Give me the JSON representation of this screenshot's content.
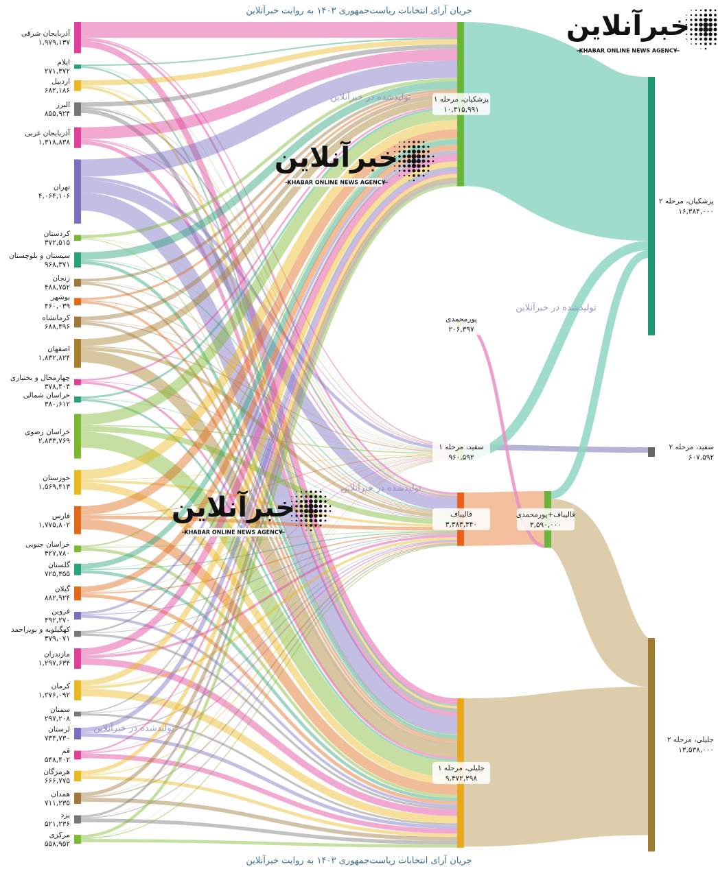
{
  "chart_data": {
    "type": "sankey",
    "title": "جریان آرای انتخابات ریاست‌جمهوری ۱۴۰۳ به روایت خبرآنلاین",
    "watermark": "تولیدشده در خبرآنلاین",
    "logo_name": "خبرآنلاین",
    "logo_tagline": "KHABAR ONLINE NEWS AGENCY",
    "nodes": [
      {
        "label": "آذربایجان شرقی",
        "value": 1979137,
        "value_label": "۱,۹۷۹,۱۳۷",
        "color": "#e0409a"
      },
      {
        "label": "ایلام",
        "value": 271372,
        "value_label": "۲۷۱,۳۷۲",
        "color": "#2aa37a"
      },
      {
        "label": "اردبیل",
        "value": 682186,
        "value_label": "۶۸۲,۱۸۶",
        "color": "#e8b820"
      },
      {
        "label": "البرز",
        "value": 855924,
        "value_label": "۸۵۵,۹۲۴",
        "color": "#777777"
      },
      {
        "label": "آذربایجان غربی",
        "value": 1318838,
        "value_label": "۱,۳۱۸,۸۳۸",
        "color": "#e0409a"
      },
      {
        "label": "تهران",
        "value": 4064106,
        "value_label": "۴,۰۶۴,۱۰۶",
        "color": "#7b6fc0"
      },
      {
        "label": "کردستان",
        "value": 372515,
        "value_label": "۳۷۲,۵۱۵",
        "color": "#7cb82f"
      },
      {
        "label": "سیستان و بلوچستان",
        "value": 968371,
        "value_label": "۹۶۸,۳۷۱",
        "color": "#2aa37a"
      },
      {
        "label": "زنجان",
        "value": 488752,
        "value_label": "۴۸۸,۷۵۲",
        "color": "#a0783c"
      },
      {
        "label": "بوشهر",
        "value": 460039,
        "value_label": "۴۶۰,۰۳۹",
        "color": "#e06a1a"
      },
      {
        "label": "کرمانشاه",
        "value": 688496,
        "value_label": "۶۸۸,۴۹۶",
        "color": "#a0783c"
      },
      {
        "label": "اصفهان",
        "value": 1832824,
        "value_label": "۱,۸۳۲,۸۲۴",
        "color": "#a8802c"
      },
      {
        "label": "چهارمحال و بختیاری",
        "value": 378404,
        "value_label": "۳۷۸,۴۰۴",
        "color": "#e0409a"
      },
      {
        "label": "خراسان شمالی",
        "value": 380612,
        "value_label": "۳۸۰,۶۱۲",
        "color": "#2aa37a"
      },
      {
        "label": "خراسان رضوی",
        "value": 2833769,
        "value_label": "۲,۸۳۳,۷۶۹",
        "color": "#7cb82f"
      },
      {
        "label": "خوزستان",
        "value": 1569413,
        "value_label": "۱,۵۶۹,۴۱۳",
        "color": "#e8b820"
      },
      {
        "label": "فارس",
        "value": 1775802,
        "value_label": "۱,۷۷۵,۸۰۲",
        "color": "#e06a1a"
      },
      {
        "label": "خراسان جنوبی",
        "value": 427780,
        "value_label": "۴۲۷,۷۸۰",
        "color": "#7cb82f"
      },
      {
        "label": "گلستان",
        "value": 725355,
        "value_label": "۷۲۵,۳۵۵",
        "color": "#2aa37a"
      },
      {
        "label": "گیلان",
        "value": 882924,
        "value_label": "۸۸۲,۹۲۴",
        "color": "#e06a1a"
      },
      {
        "label": "قزوین",
        "value": 492270,
        "value_label": "۴۹۲,۲۷۰",
        "color": "#7b6fc0"
      },
      {
        "label": "کهگیلویه و بویراحمد",
        "value": 379071,
        "value_label": "۳۷۹,۰۷۱",
        "color": "#777777"
      },
      {
        "label": "مازندران",
        "value": 1297634,
        "value_label": "۱,۲۹۷,۶۳۴",
        "color": "#e0409a"
      },
      {
        "label": "کرمان",
        "value": 1276092,
        "value_label": "۱,۲۷۶,۰۹۲",
        "color": "#e8b820"
      },
      {
        "label": "سمنان",
        "value": 297208,
        "value_label": "۲۹۷,۲۰۸",
        "color": "#777777"
      },
      {
        "label": "لرستان",
        "value": 734730,
        "value_label": "۷۳۴,۷۳۰",
        "color": "#7b6fc0"
      },
      {
        "label": "قم",
        "value": 548402,
        "value_label": "۵۴۸,۴۰۲",
        "color": "#e0409a"
      },
      {
        "label": "هرمزگان",
        "value": 666775,
        "value_label": "۶۶۶,۷۷۵",
        "color": "#e8b820"
      },
      {
        "label": "همدان",
        "value": 711235,
        "value_label": "۷۱۱,۲۳۵",
        "color": "#a0783c"
      },
      {
        "label": "یزد",
        "value": 521236,
        "value_label": "۵۲۱,۲۳۶",
        "color": "#777777"
      },
      {
        "label": "مرکزی",
        "value": 558952,
        "value_label": "۵۵۸,۹۵۲",
        "color": "#7cb82f"
      },
      {
        "label": "پزشکیان، مرحله ۱",
        "value": 10415991,
        "value_label": "۱۰,۴۱۵,۹۹۱",
        "color": "#6bb53a"
      },
      {
        "label": "پورمحمدی",
        "value": 206397,
        "value_label": "۲۰۶,۳۹۷",
        "color": "#6bb53a"
      },
      {
        "label": "سفید، مرحله ۱",
        "value": 960592,
        "value_label": "۹۶۰,۵۹۲",
        "color": "#6bb53a"
      },
      {
        "label": "قالیباف",
        "value": 3383340,
        "value_label": "۳,۳۸۳,۳۴۰",
        "color": "#e8601c"
      },
      {
        "label": "جلیلی، مرحله ۱",
        "value": 9472298,
        "value_label": "۹,۴۷۲,۲۹۸",
        "color": "#e8a81c"
      },
      {
        "label": "قالیباف+پورمحمدی",
        "value": 3590000,
        "value_label": "۳,۵۹۰,۰۰۰",
        "color": "#6bb53a"
      },
      {
        "label": "پزشکیان، مرحله ۲",
        "value": 16384000,
        "value_label": "۱۶,۳۸۴,۰۰۰",
        "color": "#1f9a6e"
      },
      {
        "label": "سفید، مرحله ۲",
        "value": 607592,
        "value_label": "۶۰۷,۵۹۲",
        "color": "#666666"
      },
      {
        "label": "جلیلی، مرحله ۲",
        "value": 13538000,
        "value_label": "۱۳,۵۳۸,۰۰۰",
        "color": "#a07a30"
      }
    ],
    "links": [
      {
        "source": 0,
        "target": 31,
        "value": 1000000
      },
      {
        "source": 0,
        "target": 33,
        "value": 60000
      },
      {
        "source": 0,
        "target": 34,
        "value": 130000
      },
      {
        "source": 0,
        "target": 35,
        "value": 400000
      },
      {
        "source": 1,
        "target": 31,
        "value": 90000
      },
      {
        "source": 1,
        "target": 33,
        "value": 8000
      },
      {
        "source": 1,
        "target": 34,
        "value": 25000
      },
      {
        "source": 1,
        "target": 35,
        "value": 90000
      },
      {
        "source": 2,
        "target": 31,
        "value": 330000
      },
      {
        "source": 2,
        "target": 33,
        "value": 20000
      },
      {
        "source": 2,
        "target": 34,
        "value": 40000
      },
      {
        "source": 2,
        "target": 35,
        "value": 150000
      },
      {
        "source": 3,
        "target": 31,
        "value": 280000
      },
      {
        "source": 3,
        "target": 33,
        "value": 30000
      },
      {
        "source": 3,
        "target": 34,
        "value": 110000
      },
      {
        "source": 3,
        "target": 35,
        "value": 260000
      },
      {
        "source": 4,
        "target": 31,
        "value": 750000
      },
      {
        "source": 4,
        "target": 33,
        "value": 40000
      },
      {
        "source": 4,
        "target": 34,
        "value": 70000
      },
      {
        "source": 4,
        "target": 35,
        "value": 230000
      },
      {
        "source": 5,
        "target": 31,
        "value": 1100000
      },
      {
        "source": 5,
        "target": 33,
        "value": 200000
      },
      {
        "source": 5,
        "target": 34,
        "value": 790000
      },
      {
        "source": 5,
        "target": 35,
        "value": 1150000
      },
      {
        "source": 6,
        "target": 31,
        "value": 200000
      },
      {
        "source": 6,
        "target": 33,
        "value": 15000
      },
      {
        "source": 6,
        "target": 34,
        "value": 15000
      },
      {
        "source": 6,
        "target": 35,
        "value": 50000
      },
      {
        "source": 7,
        "target": 31,
        "value": 480000
      },
      {
        "source": 7,
        "target": 33,
        "value": 20000
      },
      {
        "source": 7,
        "target": 34,
        "value": 60000
      },
      {
        "source": 7,
        "target": 35,
        "value": 200000
      },
      {
        "source": 8,
        "target": 31,
        "value": 180000
      },
      {
        "source": 8,
        "target": 33,
        "value": 15000
      },
      {
        "source": 8,
        "target": 34,
        "value": 40000
      },
      {
        "source": 8,
        "target": 35,
        "value": 130000
      },
      {
        "source": 9,
        "target": 31,
        "value": 140000
      },
      {
        "source": 9,
        "target": 33,
        "value": 10000
      },
      {
        "source": 9,
        "target": 34,
        "value": 50000
      },
      {
        "source": 9,
        "target": 35,
        "value": 150000
      },
      {
        "source": 10,
        "target": 31,
        "value": 270000
      },
      {
        "source": 10,
        "target": 33,
        "value": 25000
      },
      {
        "source": 10,
        "target": 34,
        "value": 60000
      },
      {
        "source": 10,
        "target": 35,
        "value": 170000
      },
      {
        "source": 11,
        "target": 31,
        "value": 450000
      },
      {
        "source": 11,
        "target": 33,
        "value": 60000
      },
      {
        "source": 11,
        "target": 34,
        "value": 230000
      },
      {
        "source": 11,
        "target": 35,
        "value": 750000
      },
      {
        "source": 12,
        "target": 31,
        "value": 110000
      },
      {
        "source": 12,
        "target": 33,
        "value": 10000
      },
      {
        "source": 12,
        "target": 34,
        "value": 40000
      },
      {
        "source": 12,
        "target": 35,
        "value": 140000
      },
      {
        "source": 13,
        "target": 31,
        "value": 130000
      },
      {
        "source": 13,
        "target": 33,
        "value": 10000
      },
      {
        "source": 13,
        "target": 34,
        "value": 30000
      },
      {
        "source": 13,
        "target": 35,
        "value": 130000
      },
      {
        "source": 14,
        "target": 31,
        "value": 700000
      },
      {
        "source": 14,
        "target": 33,
        "value": 70000
      },
      {
        "source": 14,
        "target": 34,
        "value": 350000
      },
      {
        "source": 14,
        "target": 35,
        "value": 1020000
      },
      {
        "source": 15,
        "target": 31,
        "value": 600000
      },
      {
        "source": 15,
        "target": 33,
        "value": 40000
      },
      {
        "source": 15,
        "target": 34,
        "value": 150000
      },
      {
        "source": 15,
        "target": 35,
        "value": 450000
      },
      {
        "source": 16,
        "target": 31,
        "value": 550000
      },
      {
        "source": 16,
        "target": 33,
        "value": 50000
      },
      {
        "source": 16,
        "target": 34,
        "value": 220000
      },
      {
        "source": 16,
        "target": 35,
        "value": 650000
      },
      {
        "source": 17,
        "target": 31,
        "value": 90000
      },
      {
        "source": 17,
        "target": 33,
        "value": 10000
      },
      {
        "source": 17,
        "target": 34,
        "value": 40000
      },
      {
        "source": 17,
        "target": 35,
        "value": 190000
      },
      {
        "source": 18,
        "target": 31,
        "value": 330000
      },
      {
        "source": 18,
        "target": 33,
        "value": 20000
      },
      {
        "source": 18,
        "target": 34,
        "value": 60000
      },
      {
        "source": 18,
        "target": 35,
        "value": 200000
      },
      {
        "source": 19,
        "target": 31,
        "value": 360000
      },
      {
        "source": 19,
        "target": 33,
        "value": 30000
      },
      {
        "source": 19,
        "target": 34,
        "value": 80000
      },
      {
        "source": 19,
        "target": 35,
        "value": 220000
      },
      {
        "source": 20,
        "target": 31,
        "value": 150000
      },
      {
        "source": 20,
        "target": 33,
        "value": 15000
      },
      {
        "source": 20,
        "target": 34,
        "value": 50000
      },
      {
        "source": 20,
        "target": 35,
        "value": 170000
      },
      {
        "source": 21,
        "target": 31,
        "value": 110000
      },
      {
        "source": 21,
        "target": 33,
        "value": 10000
      },
      {
        "source": 21,
        "target": 34,
        "value": 40000
      },
      {
        "source": 21,
        "target": 35,
        "value": 140000
      },
      {
        "source": 22,
        "target": 31,
        "value": 430000
      },
      {
        "source": 22,
        "target": 33,
        "value": 40000
      },
      {
        "source": 22,
        "target": 34,
        "value": 150000
      },
      {
        "source": 22,
        "target": 35,
        "value": 420000
      },
      {
        "source": 23,
        "target": 31,
        "value": 360000
      },
      {
        "source": 23,
        "target": 33,
        "value": 30000
      },
      {
        "source": 23,
        "target": 34,
        "value": 160000
      },
      {
        "source": 23,
        "target": 35,
        "value": 470000
      },
      {
        "source": 24,
        "target": 31,
        "value": 70000
      },
      {
        "source": 24,
        "target": 33,
        "value": 8000
      },
      {
        "source": 24,
        "target": 34,
        "value": 30000
      },
      {
        "source": 24,
        "target": 35,
        "value": 130000
      },
      {
        "source": 25,
        "target": 31,
        "value": 270000
      },
      {
        "source": 25,
        "target": 33,
        "value": 20000
      },
      {
        "source": 25,
        "target": 34,
        "value": 60000
      },
      {
        "source": 25,
        "target": 35,
        "value": 220000
      },
      {
        "source": 26,
        "target": 31,
        "value": 100000
      },
      {
        "source": 26,
        "target": 33,
        "value": 15000
      },
      {
        "source": 26,
        "target": 34,
        "value": 60000
      },
      {
        "source": 26,
        "target": 35,
        "value": 300000
      },
      {
        "source": 27,
        "target": 31,
        "value": 240000
      },
      {
        "source": 27,
        "target": 33,
        "value": 20000
      },
      {
        "source": 27,
        "target": 34,
        "value": 60000
      },
      {
        "source": 27,
        "target": 35,
        "value": 210000
      },
      {
        "source": 28,
        "target": 31,
        "value": 230000
      },
      {
        "source": 28,
        "target": 33,
        "value": 25000
      },
      {
        "source": 28,
        "target": 34,
        "value": 70000
      },
      {
        "source": 28,
        "target": 35,
        "value": 250000
      },
      {
        "source": 29,
        "target": 31,
        "value": 140000
      },
      {
        "source": 29,
        "target": 33,
        "value": 15000
      },
      {
        "source": 29,
        "target": 34,
        "value": 50000
      },
      {
        "source": 29,
        "target": 35,
        "value": 230000
      },
      {
        "source": 30,
        "target": 31,
        "value": 180000
      },
      {
        "source": 30,
        "target": 33,
        "value": 20000
      },
      {
        "source": 30,
        "target": 34,
        "value": 60000
      },
      {
        "source": 30,
        "target": 35,
        "value": 200000
      },
      {
        "source": 31,
        "target": 37,
        "value": 10400000,
        "color": "#8fd6c2"
      },
      {
        "source": 33,
        "target": 38,
        "value": 350000,
        "color": "#a9a7cf"
      },
      {
        "source": 33,
        "target": 37,
        "value": 600000,
        "color": "#8fd6c2"
      },
      {
        "source": 34,
        "target": 36,
        "value": 3383340,
        "color": "#f2b48c"
      },
      {
        "source": 32,
        "target": 36,
        "value": 206397,
        "color": "#ea8fc4"
      },
      {
        "source": 36,
        "target": 37,
        "value": 490000,
        "color": "#8fd6c2"
      },
      {
        "source": 36,
        "target": 39,
        "value": 3100000,
        "color": "#d8c49c"
      },
      {
        "source": 35,
        "target": 39,
        "value": 9400000,
        "color": "#d8c49c"
      }
    ]
  }
}
